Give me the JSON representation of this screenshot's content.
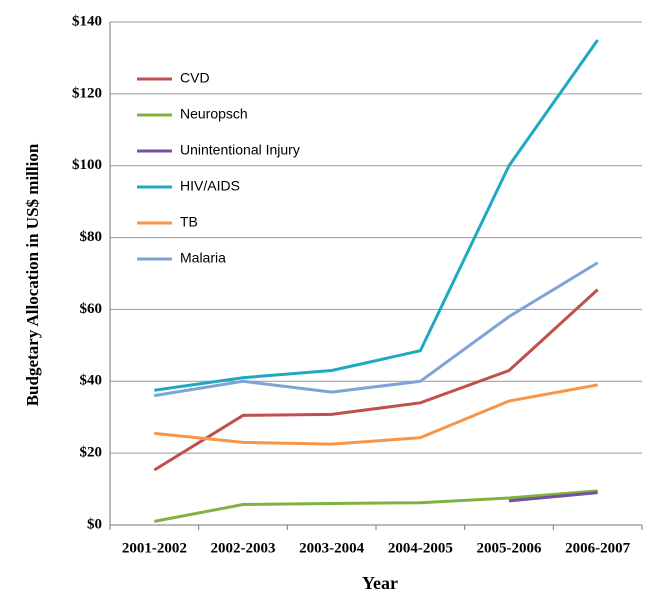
{
  "chart_data": {
    "type": "line",
    "xlabel": "Year",
    "ylabel": "Budgetary Allocation in US$ million",
    "categories": [
      "2001-2002",
      "2002-2003",
      "2003-2004",
      "2004-2005",
      "2005-2006",
      "2006-2007"
    ],
    "series": [
      {
        "name": "CVD",
        "color": "#c0504d",
        "values": [
          15.3,
          30.5,
          30.8,
          34,
          43,
          65.5
        ]
      },
      {
        "name": "Neuropsch",
        "color": "#7fb341",
        "values": [
          1,
          5.7,
          6,
          6.2,
          7.5,
          9.5
        ]
      },
      {
        "name": "Unintentional Injury",
        "color": "#7552a0",
        "values": [
          null,
          null,
          null,
          null,
          6.7,
          9
        ]
      },
      {
        "name": "HIV/AIDS",
        "color": "#1fa8c2",
        "values": [
          37.5,
          41,
          43,
          48.5,
          100,
          135
        ]
      },
      {
        "name": "TB",
        "color": "#f79646",
        "values": [
          25.5,
          23,
          22.5,
          24.3,
          34.5,
          39
        ]
      },
      {
        "name": "Malaria",
        "color": "#7ea3d6",
        "values": [
          36,
          40,
          37,
          40,
          58,
          73
        ]
      }
    ],
    "ylim": [
      0,
      140
    ],
    "yticks": [
      {
        "value": 0,
        "label": "$0"
      },
      {
        "value": 20,
        "label": "$20"
      },
      {
        "value": 40,
        "label": "$40"
      },
      {
        "value": 60,
        "label": "$60"
      },
      {
        "value": 80,
        "label": "$80"
      },
      {
        "value": 100,
        "label": "$100"
      },
      {
        "value": 120,
        "label": "$120"
      },
      {
        "value": 140,
        "label": "$140"
      }
    ],
    "grid": true
  }
}
